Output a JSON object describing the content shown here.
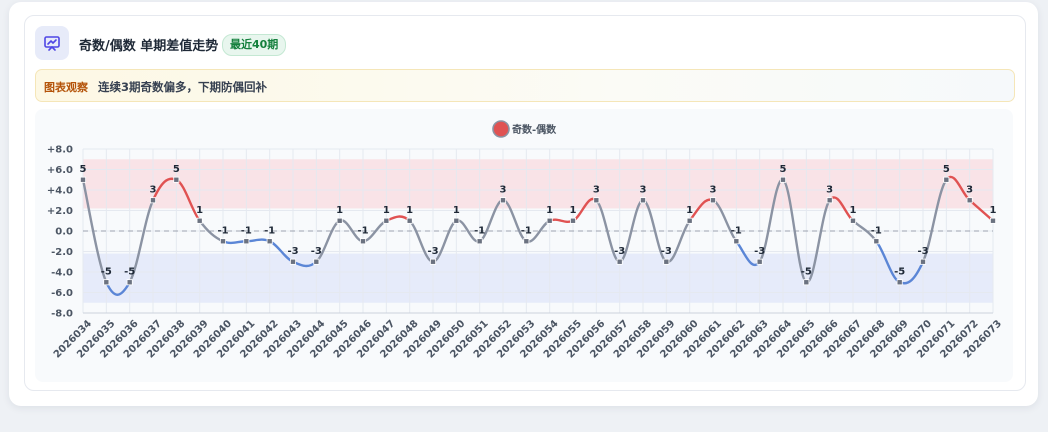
{
  "card": {
    "title": "奇数/偶数 单期差值走势",
    "badge": "最近40期",
    "title_icon": "chart-presentation-icon",
    "note_tag": "图表观察",
    "note_text": "连续3期奇数偏多，下期防偶回补"
  },
  "chart_data": {
    "type": "line",
    "title": "",
    "xlabel": "",
    "ylabel": "",
    "ylim": [
      -8,
      8
    ],
    "yticks": [
      "+8.0",
      "+6.0",
      "+4.0",
      "+2.0",
      "0.0",
      "-2.0",
      "-4.0",
      "-6.0",
      "-8.0"
    ],
    "legend_position": "top-center",
    "grid": true,
    "bands": [
      {
        "from": 2.2,
        "to": 7,
        "color": "#f9e3e7"
      },
      {
        "from": -7,
        "to": -2.2,
        "color": "#e6ebfa"
      }
    ],
    "colors": {
      "positive": "#e05252",
      "negative": "#5b86d6",
      "neutral": "#8b93a3",
      "marker": "#6b7280",
      "zero_line": "#9ca3af"
    },
    "x": [
      "2026034",
      "2026035",
      "2026036",
      "2026037",
      "2026038",
      "2026039",
      "2026040",
      "2026041",
      "2026042",
      "2026043",
      "2026044",
      "2026045",
      "2026046",
      "2026047",
      "2026048",
      "2026049",
      "2026050",
      "2026051",
      "2026052",
      "2026053",
      "2026054",
      "2026055",
      "2026056",
      "2026057",
      "2026058",
      "2026059",
      "2026060",
      "2026061",
      "2026062",
      "2026063",
      "2026064",
      "2026065",
      "2026066",
      "2026067",
      "2026068",
      "2026069",
      "2026070",
      "2026071",
      "2026072",
      "2026073"
    ],
    "series": [
      {
        "name": "奇数-偶数",
        "values": [
          5,
          -5,
          -5,
          3,
          5,
          1,
          -1,
          -1,
          -1,
          -3,
          -3,
          1,
          -1,
          1,
          1,
          -3,
          1,
          -1,
          3,
          -1,
          1,
          1,
          3,
          -3,
          3,
          -3,
          1,
          3,
          -1,
          -3,
          5,
          -5,
          3,
          1,
          -1,
          -5,
          -3,
          5,
          3,
          1
        ]
      }
    ]
  }
}
